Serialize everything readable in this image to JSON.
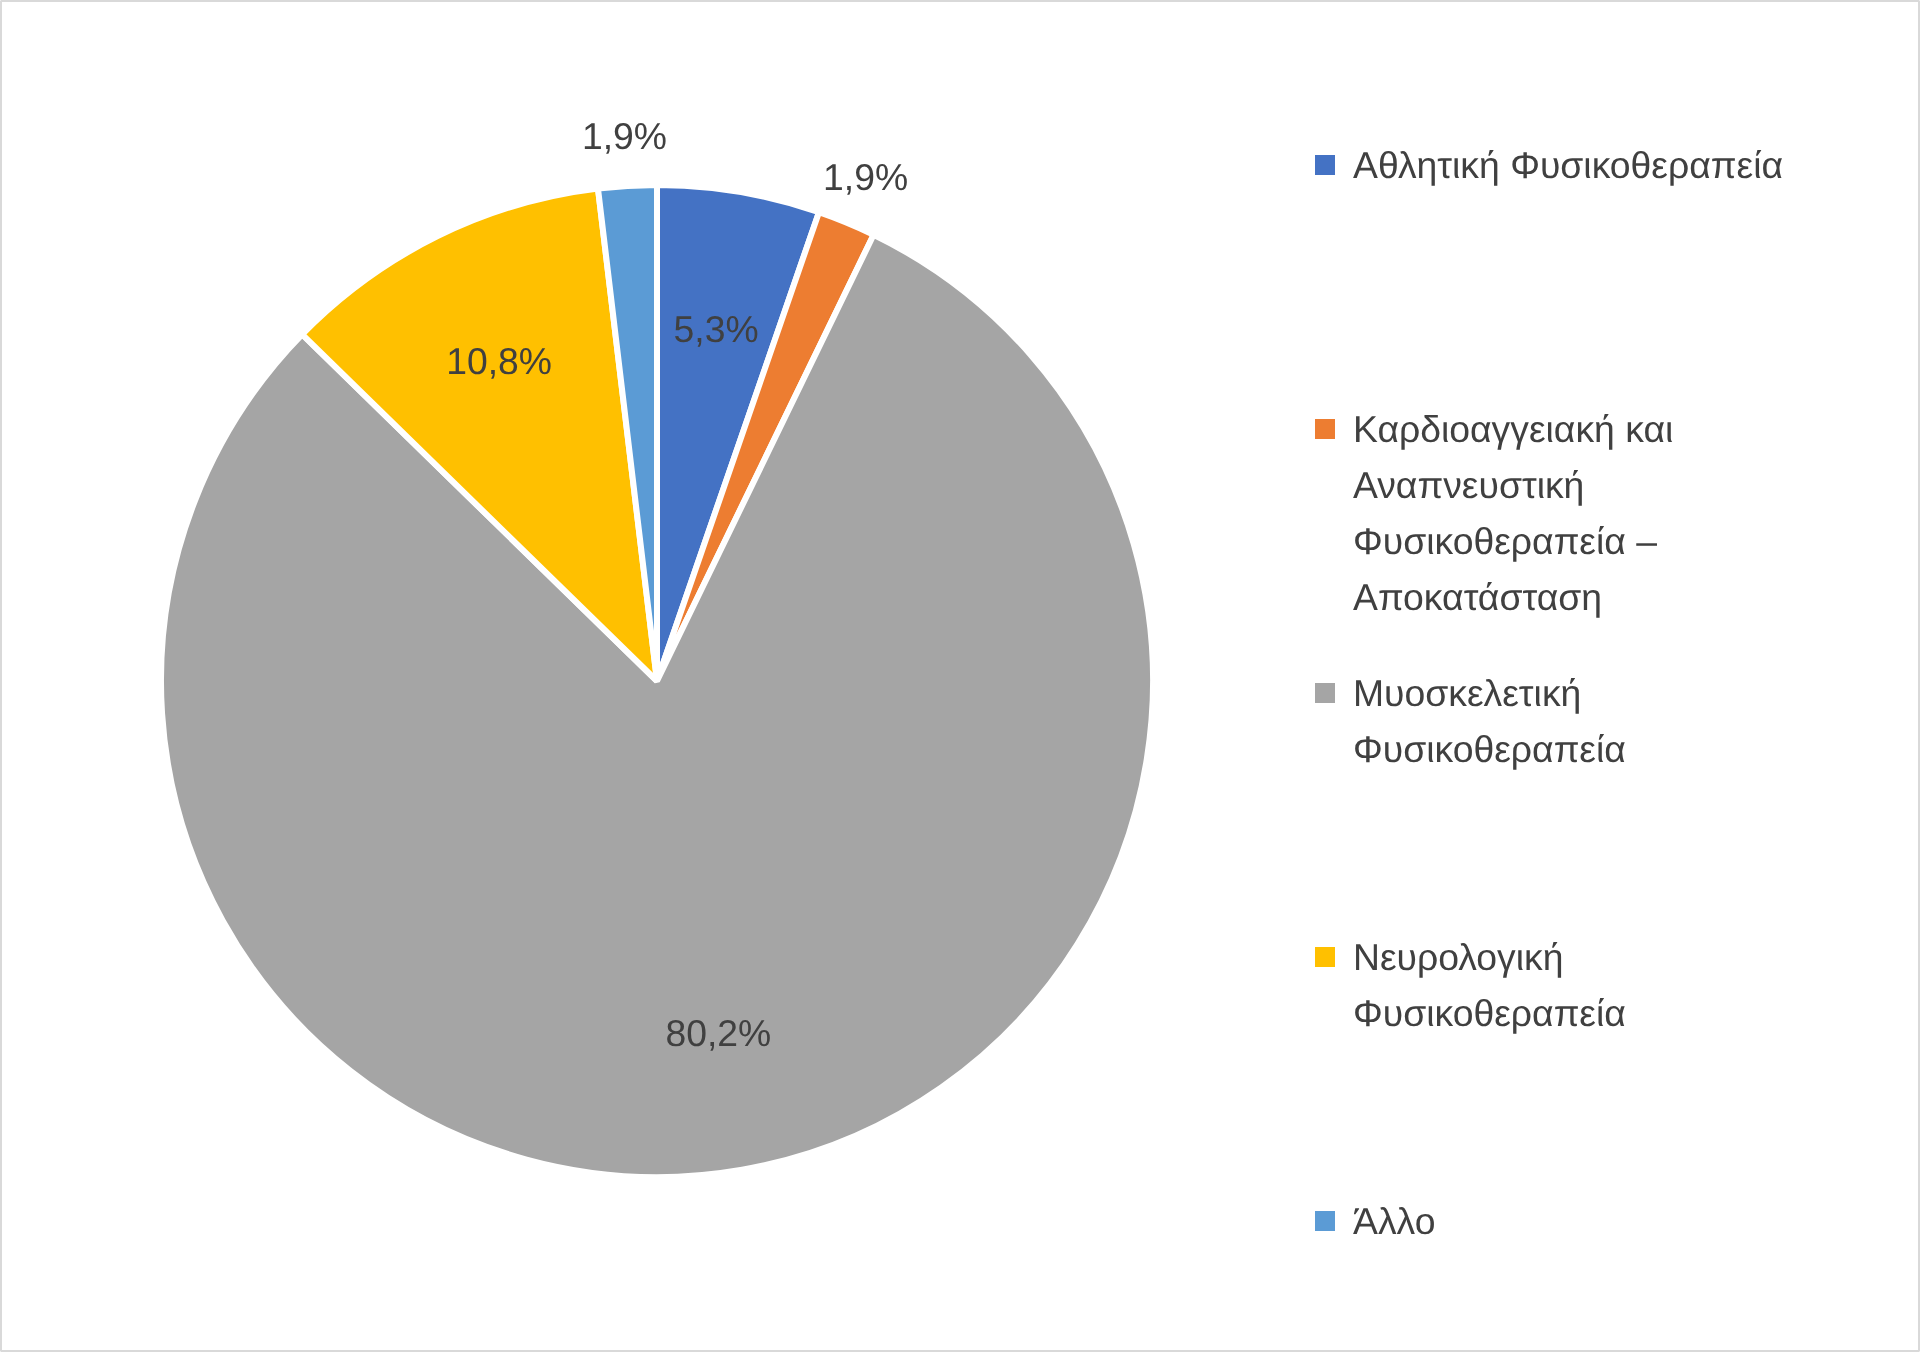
{
  "chart_data": {
    "type": "pie",
    "categories": [
      "Αθλητική Φυσικοθεραπεία",
      "Καρδιοαγγειακή και Αναπνευστική Φυσικοθεραπεία – Αποκατάσταση",
      "Μυοσκελετική Φυσικοθεραπεία",
      "Νευρολογική Φυσικοθεραπεία",
      "Άλλο"
    ],
    "values": [
      5.3,
      1.9,
      80.2,
      10.8,
      1.9
    ],
    "colors": [
      "#4472c4",
      "#ed7d31",
      "#a5a5a5",
      "#ffc000",
      "#5b9bd5"
    ],
    "value_labels": [
      "5,3%",
      "1,9%",
      "80,2%",
      "10,8%",
      "1,9%"
    ],
    "legend": "right"
  }
}
